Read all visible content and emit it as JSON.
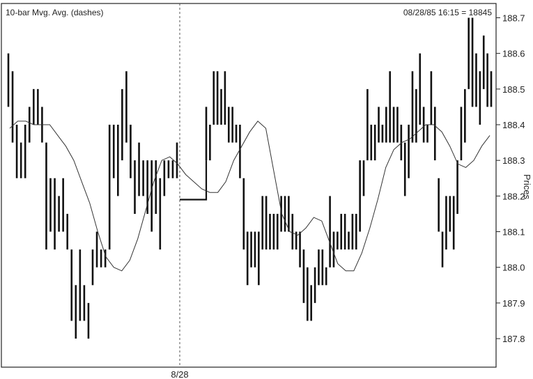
{
  "chart_data": {
    "type": "ohlc-bars",
    "title_left": "10-bar Mvg. Avg. (dashes)",
    "title_right": "08/28/85 16:15 = 18845",
    "ylabel": "Prices",
    "ylim": [
      187.72,
      188.74
    ],
    "yticks": [
      "188.7",
      "188.6",
      "188.5",
      "188.4",
      "188.3",
      "188.2",
      "188.1",
      "188.0",
      "187.9",
      "187.8"
    ],
    "x_marker_label": "8/28",
    "grid": false,
    "bar_color": "#111111",
    "ma_color": "#333333",
    "bars_day1": [
      {
        "h": 188.6,
        "l": 188.45
      },
      {
        "h": 188.55,
        "l": 188.35
      },
      {
        "h": 188.4,
        "l": 188.25
      },
      {
        "h": 188.35,
        "l": 188.25
      },
      {
        "h": 188.4,
        "l": 188.25
      },
      {
        "h": 188.45,
        "l": 188.35
      },
      {
        "h": 188.5,
        "l": 188.4
      },
      {
        "h": 188.5,
        "l": 188.4
      },
      {
        "h": 188.45,
        "l": 188.35
      },
      {
        "h": 188.35,
        "l": 188.05
      },
      {
        "h": 188.25,
        "l": 188.1
      },
      {
        "h": 188.25,
        "l": 188.05
      },
      {
        "h": 188.2,
        "l": 188.1
      },
      {
        "h": 188.25,
        "l": 188.1
      },
      {
        "h": 188.15,
        "l": 188.05
      },
      {
        "h": 188.05,
        "l": 187.85
      },
      {
        "h": 187.95,
        "l": 187.8
      },
      {
        "h": 188.05,
        "l": 187.85
      },
      {
        "h": 187.95,
        "l": 187.85
      },
      {
        "h": 187.9,
        "l": 187.8
      },
      {
        "h": 188.05,
        "l": 187.95
      },
      {
        "h": 188.1,
        "l": 188.0
      },
      {
        "h": 188.05,
        "l": 188.0
      },
      {
        "h": 188.05,
        "l": 188.0
      },
      {
        "h": 188.4,
        "l": 188.05
      },
      {
        "h": 188.4,
        "l": 188.25
      },
      {
        "h": 188.4,
        "l": 188.2
      },
      {
        "h": 188.5,
        "l": 188.3
      },
      {
        "h": 188.55,
        "l": 188.35
      },
      {
        "h": 188.4,
        "l": 188.25
      },
      {
        "h": 188.3,
        "l": 188.15
      },
      {
        "h": 188.35,
        "l": 188.2
      },
      {
        "h": 188.3,
        "l": 188.2
      },
      {
        "h": 188.3,
        "l": 188.15
      },
      {
        "h": 188.3,
        "l": 188.1
      },
      {
        "h": 188.3,
        "l": 188.15
      },
      {
        "h": 188.25,
        "l": 188.05
      },
      {
        "h": 188.3,
        "l": 188.2
      },
      {
        "h": 188.3,
        "l": 188.25
      },
      {
        "h": 188.3,
        "l": 188.25
      },
      {
        "h": 188.35,
        "l": 188.25
      }
    ],
    "bars_day2": [
      {
        "h": 188.45,
        "l": 188.3
      },
      {
        "h": 188.4,
        "l": 188.3
      },
      {
        "h": 188.55,
        "l": 188.4
      },
      {
        "h": 188.55,
        "l": 188.4
      },
      {
        "h": 188.5,
        "l": 188.4
      },
      {
        "h": 188.55,
        "l": 188.4
      },
      {
        "h": 188.45,
        "l": 188.35
      },
      {
        "h": 188.45,
        "l": 188.35
      },
      {
        "h": 188.4,
        "l": 188.35
      },
      {
        "h": 188.4,
        "l": 188.25
      },
      {
        "h": 188.25,
        "l": 188.05
      },
      {
        "h": 188.1,
        "l": 187.95
      },
      {
        "h": 188.1,
        "l": 188.0
      },
      {
        "h": 188.1,
        "l": 188.0
      },
      {
        "h": 188.1,
        "l": 187.95
      },
      {
        "h": 188.2,
        "l": 188.05
      },
      {
        "h": 188.2,
        "l": 188.05
      },
      {
        "h": 188.15,
        "l": 188.05
      },
      {
        "h": 188.15,
        "l": 188.05
      },
      {
        "h": 188.15,
        "l": 188.05
      },
      {
        "h": 188.2,
        "l": 188.1
      },
      {
        "h": 188.2,
        "l": 188.1
      },
      {
        "h": 188.2,
        "l": 188.1
      },
      {
        "h": 188.15,
        "l": 188.05
      },
      {
        "h": 188.1,
        "l": 188.05
      },
      {
        "h": 188.1,
        "l": 188.0
      },
      {
        "h": 188.05,
        "l": 187.9
      },
      {
        "h": 188.0,
        "l": 187.85
      },
      {
        "h": 187.95,
        "l": 187.85
      },
      {
        "h": 188.0,
        "l": 187.9
      },
      {
        "h": 188.05,
        "l": 187.95
      },
      {
        "h": 188.05,
        "l": 187.95
      },
      {
        "h": 188.0,
        "l": 187.95
      },
      {
        "h": 188.2,
        "l": 188.0
      },
      {
        "h": 188.1,
        "l": 188.0
      },
      {
        "h": 188.1,
        "l": 188.05
      },
      {
        "h": 188.15,
        "l": 188.05
      },
      {
        "h": 188.15,
        "l": 188.05
      },
      {
        "h": 188.1,
        "l": 188.05
      },
      {
        "h": 188.15,
        "l": 188.05
      },
      {
        "h": 188.15,
        "l": 188.05
      },
      {
        "h": 188.3,
        "l": 188.1
      },
      {
        "h": 188.3,
        "l": 188.2
      },
      {
        "h": 188.5,
        "l": 188.3
      },
      {
        "h": 188.4,
        "l": 188.3
      },
      {
        "h": 188.4,
        "l": 188.3
      },
      {
        "h": 188.45,
        "l": 188.35
      },
      {
        "h": 188.4,
        "l": 188.35
      },
      {
        "h": 188.45,
        "l": 188.35
      },
      {
        "h": 188.55,
        "l": 188.35
      },
      {
        "h": 188.45,
        "l": 188.35
      },
      {
        "h": 188.45,
        "l": 188.35
      },
      {
        "h": 188.4,
        "l": 188.3
      },
      {
        "h": 188.35,
        "l": 188.2
      },
      {
        "h": 188.4,
        "l": 188.25
      },
      {
        "h": 188.55,
        "l": 188.35
      },
      {
        "h": 188.5,
        "l": 188.35
      },
      {
        "h": 188.6,
        "l": 188.4
      },
      {
        "h": 188.45,
        "l": 188.35
      },
      {
        "h": 188.4,
        "l": 188.35
      },
      {
        "h": 188.55,
        "l": 188.4
      },
      {
        "h": 188.45,
        "l": 188.3
      },
      {
        "h": 188.25,
        "l": 188.1
      },
      {
        "h": 188.1,
        "l": 188.0
      },
      {
        "h": 188.2,
        "l": 188.05
      },
      {
        "h": 188.2,
        "l": 188.1
      },
      {
        "h": 188.2,
        "l": 188.05
      },
      {
        "h": 188.3,
        "l": 188.15
      },
      {
        "h": 188.45,
        "l": 188.3
      },
      {
        "h": 188.5,
        "l": 188.35
      },
      {
        "h": 188.7,
        "l": 188.5
      },
      {
        "h": 188.7,
        "l": 188.45
      },
      {
        "h": 188.6,
        "l": 188.45
      },
      {
        "h": 188.55,
        "l": 188.4
      },
      {
        "h": 188.65,
        "l": 188.5
      },
      {
        "h": 188.6,
        "l": 188.45
      },
      {
        "h": 188.55,
        "l": 188.45
      }
    ],
    "gap_level": 188.19,
    "moving_average": [
      188.39,
      188.41,
      188.41,
      188.4,
      188.4,
      188.4,
      188.37,
      188.34,
      188.3,
      188.24,
      188.18,
      188.1,
      188.03,
      188.0,
      187.99,
      188.02,
      188.08,
      188.16,
      188.24,
      188.3,
      188.31,
      188.29,
      188.26,
      188.24,
      188.22,
      188.21,
      188.21,
      188.24,
      188.3,
      188.34,
      188.38,
      188.41,
      188.39,
      188.27,
      188.15,
      188.1,
      188.09,
      188.11,
      188.14,
      188.13,
      188.07,
      188.01,
      187.99,
      187.99,
      188.04,
      188.11,
      188.19,
      188.28,
      188.33,
      188.35,
      188.36,
      188.38,
      188.4,
      188.4,
      188.38,
      188.34,
      188.29,
      188.28,
      188.3,
      188.34,
      188.37
    ]
  }
}
